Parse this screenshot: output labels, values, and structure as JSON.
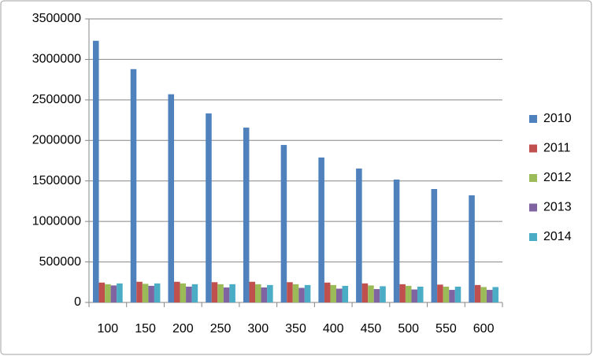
{
  "chart_data": {
    "type": "bar",
    "categories": [
      "100",
      "150",
      "200",
      "250",
      "300",
      "350",
      "400",
      "450",
      "500",
      "550",
      "600"
    ],
    "series": [
      {
        "name": "2010",
        "color": "#4f81bd",
        "values": [
          3230000,
          2880000,
          2570000,
          2333000,
          2158000,
          1944000,
          1789000,
          1653000,
          1517000,
          1400000,
          1322000
        ]
      },
      {
        "name": "2011",
        "color": "#c0504d",
        "values": [
          245000,
          255000,
          255000,
          250000,
          255000,
          250000,
          245000,
          235000,
          225000,
          220000,
          215000
        ]
      },
      {
        "name": "2012",
        "color": "#9bbb59",
        "values": [
          225000,
          230000,
          235000,
          225000,
          225000,
          225000,
          215000,
          210000,
          205000,
          195000,
          190000
        ]
      },
      {
        "name": "2013",
        "color": "#8064a2",
        "values": [
          210000,
          205000,
          195000,
          185000,
          185000,
          180000,
          170000,
          165000,
          160000,
          155000,
          155000
        ]
      },
      {
        "name": "2014",
        "color": "#4bacc6",
        "values": [
          235000,
          235000,
          225000,
          225000,
          215000,
          215000,
          205000,
          200000,
          195000,
          195000,
          190000
        ]
      }
    ],
    "ylim": [
      0,
      3500000
    ],
    "yticks": [
      0,
      500000,
      1000000,
      1500000,
      2000000,
      2500000,
      3000000,
      3500000
    ],
    "grid": true,
    "legend": "right"
  }
}
